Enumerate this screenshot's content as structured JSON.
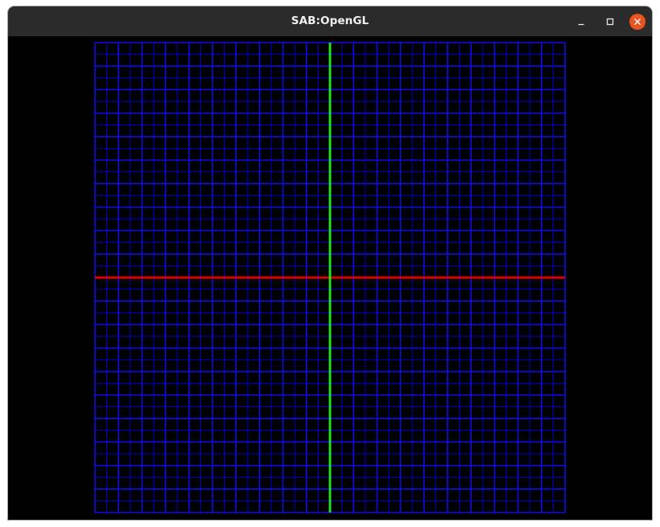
{
  "window": {
    "title": "SAB:OpenGL",
    "controls": {
      "minimize_icon": "minimize-icon",
      "maximize_icon": "maximize-icon",
      "close_icon": "close-icon",
      "close_color": "#e95420"
    }
  },
  "viewport": {
    "background_color": "#000000",
    "grid": {
      "divisions": 40,
      "line_color": "#0000cc",
      "major_every": 2,
      "major_color": "#0d0de6"
    },
    "axes": {
      "x_axis_color": "#e00000",
      "y_axis_color": "#22e022"
    }
  }
}
